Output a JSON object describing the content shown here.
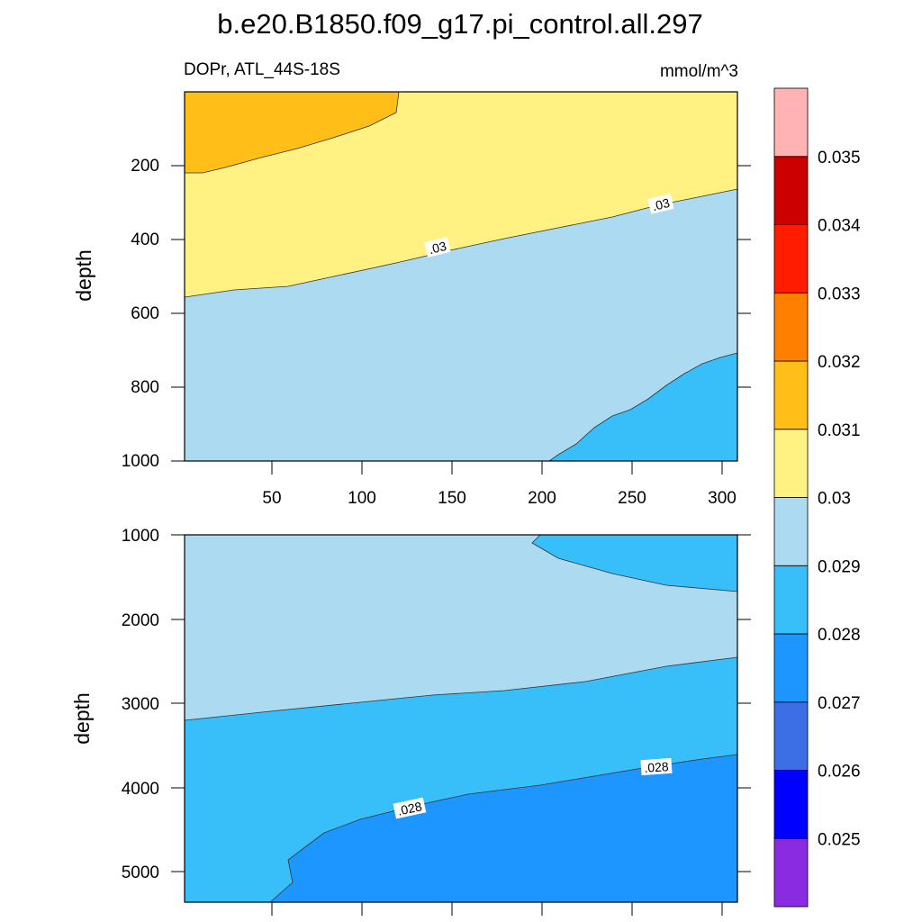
{
  "chart_data": {
    "type": "heatmap",
    "title": "b.e20.B1850.f09_g17.pi_control.all.297",
    "variable_label": "DOPr, ATL_44S-18S",
    "units_label": "mmol/m^3",
    "ylabel": "depth",
    "x_range": [
      2,
      310
    ],
    "x_ticks": [
      "50",
      "100",
      "150",
      "200",
      "250",
      "300"
    ],
    "colorbar": {
      "levels": [
        "0.025",
        "0.026",
        "0.027",
        "0.028",
        "0.029",
        "0.03",
        "0.031",
        "0.032",
        "0.033",
        "0.034",
        "0.035"
      ],
      "colors": [
        "#8a2be2",
        "#0000ff",
        "#3c6fe6",
        "#1e96ff",
        "#38bef8",
        "#acdaf1",
        "#fff282",
        "#ffbe18",
        "#ff7f00",
        "#ff1c00",
        "#cc0000",
        "#ffb3b5"
      ]
    },
    "upper_panel": {
      "ylim": [
        0,
        1000
      ],
      "y_ticks": [
        "200",
        "400",
        "600",
        "800",
        "1000"
      ],
      "contour_labels": [
        ".03",
        ".03"
      ],
      "regions": [
        {
          "value_range": [
            0.029,
            0.03
          ],
          "color": "#acdaf1"
        },
        {
          "value_range": [
            0.028,
            0.029
          ],
          "color": "#38bef8"
        },
        {
          "value_range": [
            0.03,
            0.031
          ],
          "color": "#fff282"
        },
        {
          "value_range": [
            0.031,
            0.032
          ],
          "color": "#ffbe18"
        }
      ]
    },
    "lower_panel": {
      "ylim": [
        1000,
        5400
      ],
      "y_ticks": [
        "1000",
        "2000",
        "3000",
        "4000",
        "5000"
      ],
      "contour_labels": [
        ".028",
        ".028"
      ],
      "regions": [
        {
          "value_range": [
            0.028,
            0.029
          ],
          "color": "#38bef8"
        },
        {
          "value_range": [
            0.029,
            0.03
          ],
          "color": "#acdaf1"
        },
        {
          "value_range": [
            0.027,
            0.028
          ],
          "color": "#1e96ff"
        }
      ]
    }
  }
}
